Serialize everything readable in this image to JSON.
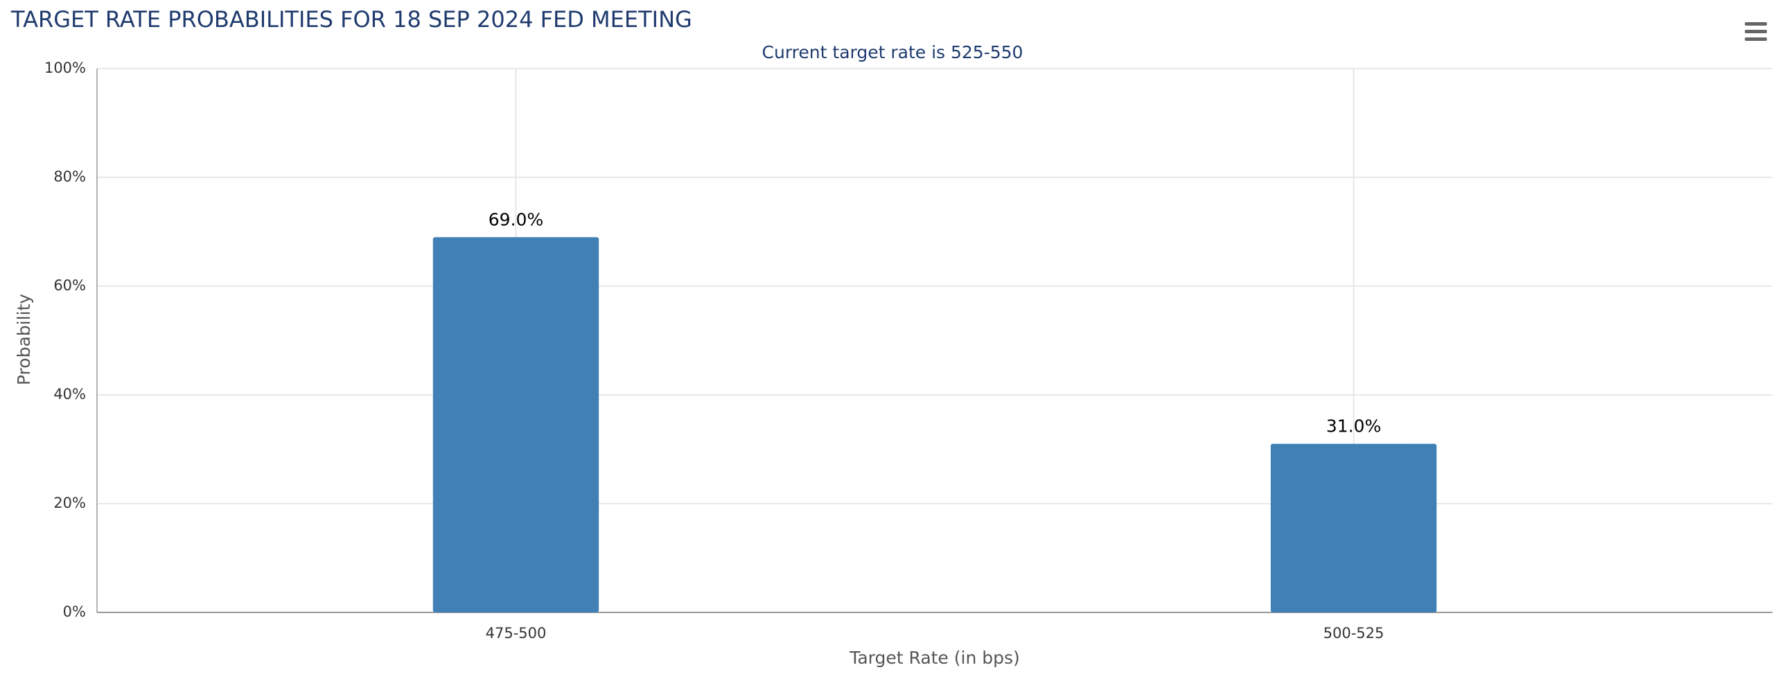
{
  "chart_data": {
    "type": "bar",
    "title": "TARGET RATE PROBABILITIES FOR 18 SEP 2024 FED MEETING",
    "subtitle": "Current target rate is 525-550",
    "x_label": "Target Rate (in bps)",
    "y_label": "Probability",
    "categories": [
      "475-500",
      "500-525"
    ],
    "values": [
      69,
      31
    ],
    "value_labels": [
      "69.0%",
      "31.0%"
    ],
    "color": "#4080b5",
    "ylim": [
      0,
      100
    ],
    "yticks": [
      {
        "value": 0,
        "label": "0%"
      },
      {
        "value": 20,
        "label": "20%"
      },
      {
        "value": 40,
        "label": "40%"
      },
      {
        "value": 60,
        "label": "60%"
      },
      {
        "value": 80,
        "label": "80%"
      },
      {
        "value": 100,
        "label": "100%"
      }
    ],
    "grid": true
  }
}
